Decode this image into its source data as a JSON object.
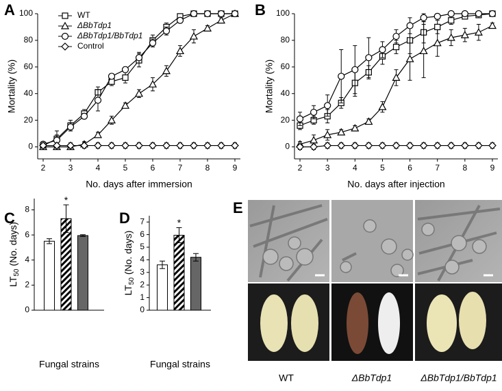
{
  "chart_data": [
    {
      "type": "line",
      "panel": "A",
      "ylabel": "Mortality (%)",
      "xlabel": "No. days after immersion",
      "x": [
        2,
        2.5,
        3,
        3.5,
        4,
        4.5,
        5,
        5.5,
        6,
        6.5,
        7,
        7.5,
        8,
        8.5,
        9
      ],
      "xlim": [
        1.8,
        9.2
      ],
      "xticks": [
        2,
        3,
        4,
        5,
        6,
        7,
        8,
        9
      ],
      "ylim": [
        -9,
        100
      ],
      "yticks": [
        0,
        20,
        40,
        60,
        80,
        100
      ],
      "legend": "upper left",
      "series": [
        {
          "name": "WT",
          "marker": "square",
          "color": "#000000",
          "values": [
            1,
            6,
            16,
            25,
            41,
            49,
            52,
            65,
            80,
            90,
            98,
            100,
            100,
            100,
            100
          ],
          "errors": [
            2,
            6,
            4,
            3,
            4,
            3,
            4,
            5,
            4,
            3,
            2,
            1,
            1,
            1,
            1
          ]
        },
        {
          "name": "ΔBbTdp1",
          "marker": "triangle",
          "color": "#000000",
          "values": [
            0,
            0,
            0,
            2,
            9,
            20,
            31,
            40,
            47,
            57,
            72,
            83,
            89,
            95,
            100
          ],
          "errors": [
            1,
            1,
            1,
            2,
            2,
            3,
            2,
            3,
            5,
            4,
            4,
            5,
            2,
            2,
            1
          ]
        },
        {
          "name": "ΔBbTdp1/BbTdp1",
          "marker": "circle",
          "color": "#000000",
          "values": [
            2,
            5,
            15,
            23,
            35,
            53,
            58,
            67,
            78,
            87,
            95,
            100,
            100,
            100,
            100
          ],
          "errors": [
            2,
            4,
            3,
            2,
            8,
            2,
            2,
            4,
            3,
            3,
            2,
            1,
            1,
            1,
            1
          ]
        },
        {
          "name": "Control",
          "marker": "diamond",
          "color": "#000000",
          "values": [
            1,
            1,
            1,
            1,
            1,
            1,
            1,
            1,
            1,
            1,
            1,
            1,
            1,
            1,
            1
          ],
          "errors": [
            2,
            2,
            2,
            2,
            2,
            2,
            2,
            2,
            2,
            2,
            2,
            2,
            2,
            2,
            2
          ]
        }
      ]
    },
    {
      "type": "line",
      "panel": "B",
      "ylabel": "Mortality (%)",
      "xlabel": "No. days after injection",
      "x": [
        2,
        2.5,
        3,
        3.5,
        4,
        4.5,
        5,
        5.5,
        6,
        6.5,
        7,
        7.5,
        8,
        8.5,
        9
      ],
      "xlim": [
        1.8,
        9.2
      ],
      "xticks": [
        2,
        3,
        4,
        5,
        6,
        7,
        8,
        9
      ],
      "ylim": [
        -9,
        100
      ],
      "yticks": [
        0,
        20,
        40,
        60,
        80,
        100
      ],
      "series": [
        {
          "name": "WT",
          "marker": "square",
          "color": "#000000",
          "values": [
            16,
            20,
            23,
            33,
            48,
            56,
            68,
            75,
            80,
            86,
            90,
            95,
            98,
            99,
            100
          ],
          "errors": [
            3,
            3,
            5,
            4,
            10,
            5,
            6,
            5,
            10,
            8,
            5,
            3,
            2,
            2,
            1
          ]
        },
        {
          "name": "ΔBbTdp1",
          "marker": "triangle",
          "color": "#000000",
          "values": [
            2,
            5,
            9,
            11,
            14,
            19,
            30,
            52,
            66,
            72,
            78,
            82,
            84,
            86,
            91
          ],
          "errors": [
            2,
            4,
            4,
            2,
            2,
            2,
            4,
            6,
            16,
            20,
            10,
            6,
            5,
            6,
            2
          ]
        },
        {
          "name": "ΔBbTdp1/BbTdp1",
          "marker": "circle",
          "color": "#000000",
          "values": [
            21,
            26,
            31,
            53,
            58,
            67,
            73,
            83,
            91,
            97,
            98,
            100,
            100,
            100,
            100
          ],
          "errors": [
            5,
            5,
            8,
            20,
            18,
            15,
            6,
            5,
            6,
            3,
            2,
            1,
            1,
            1,
            1
          ]
        },
        {
          "name": "Control",
          "marker": "diamond",
          "color": "#000000",
          "values": [
            0,
            0,
            1,
            1,
            1,
            1,
            1,
            1,
            1,
            1,
            1,
            1,
            1,
            1,
            1
          ],
          "errors": [
            2,
            2,
            2,
            2,
            2,
            2,
            2,
            2,
            2,
            2,
            2,
            2,
            2,
            2,
            2
          ]
        }
      ]
    },
    {
      "type": "bar",
      "panel": "C",
      "ylabel": [
        "LT",
        "50",
        " (No. days)"
      ],
      "xlabel": "Fungal strains",
      "categories": [
        null,
        null,
        null
      ],
      "values": [
        5.5,
        7.3,
        5.95
      ],
      "errors": [
        0.2,
        1.1,
        0.07
      ],
      "colors": [
        "#ffffff",
        "#ffffff",
        "#666666"
      ],
      "patterns": [
        "none",
        "diagonal",
        "none"
      ],
      "annotations": [
        {
          "category": 1,
          "text": "*"
        }
      ],
      "ylim": [
        0,
        8.9
      ],
      "yticks": [
        0,
        2,
        4,
        6,
        8
      ]
    },
    {
      "type": "bar",
      "panel": "D",
      "ylabel": [
        "LT",
        "50",
        " (No. days)"
      ],
      "xlabel": "Fungal strains",
      "categories": [
        null,
        null,
        null
      ],
      "values": [
        3.6,
        5.95,
        4.2
      ],
      "errors": [
        0.3,
        0.6,
        0.3
      ],
      "colors": [
        "#ffffff",
        "#ffffff",
        "#666666"
      ],
      "patterns": [
        "none",
        "diagonal",
        "none"
      ],
      "annotations": [
        {
          "category": 1,
          "text": "*"
        }
      ],
      "ylim": [
        0,
        7.5
      ],
      "yticks": [
        0,
        1,
        2,
        3,
        4,
        5,
        6,
        7
      ]
    }
  ],
  "panel_e": {
    "panel": "E",
    "labels": [
      "WT",
      "ΔBbTdp1",
      "ΔBbTdp1/BbTdp1"
    ]
  }
}
